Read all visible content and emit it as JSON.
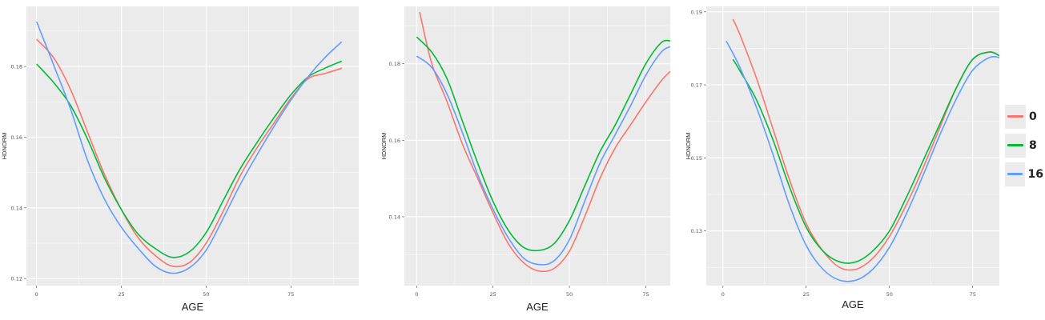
{
  "chart_data": [
    {
      "type": "line",
      "xlabel": "AGE",
      "ylabel": "HDNORM",
      "xlim": [
        -3,
        95
      ],
      "ylim": [
        0.118,
        0.197
      ],
      "xticks": [
        0,
        25,
        50,
        75
      ],
      "yticks": [
        0.12,
        0.14,
        0.16,
        0.18
      ],
      "grid": true,
      "series": [
        {
          "name": "0",
          "color": "#F8766D",
          "x": [
            0,
            5,
            10,
            15,
            20,
            25,
            30,
            35,
            40,
            45,
            50,
            55,
            60,
            65,
            70,
            75,
            80,
            85,
            90
          ],
          "y": [
            0.1877,
            0.1825,
            0.1735,
            0.1615,
            0.1495,
            0.1395,
            0.1315,
            0.1265,
            0.1235,
            0.1245,
            0.13,
            0.139,
            0.149,
            0.157,
            0.164,
            0.171,
            0.1765,
            0.178,
            0.1795
          ]
        },
        {
          "name": "8",
          "color": "#00BA38",
          "x": [
            0,
            5,
            10,
            15,
            20,
            25,
            30,
            35,
            40,
            45,
            50,
            55,
            60,
            65,
            70,
            75,
            80,
            85,
            90
          ],
          "y": [
            0.1807,
            0.1755,
            0.169,
            0.1595,
            0.1485,
            0.1395,
            0.1325,
            0.1285,
            0.126,
            0.1275,
            0.133,
            0.142,
            0.151,
            0.1585,
            0.1655,
            0.172,
            0.177,
            0.1795,
            0.1815
          ]
        },
        {
          "name": "16",
          "color": "#619CFF",
          "x": [
            0,
            5,
            10,
            15,
            20,
            25,
            30,
            35,
            40,
            45,
            50,
            55,
            60,
            65,
            70,
            75,
            80,
            85,
            90
          ],
          "y": [
            0.1927,
            0.1805,
            0.168,
            0.1535,
            0.1425,
            0.1345,
            0.1285,
            0.1235,
            0.1215,
            0.123,
            0.128,
            0.137,
            0.1465,
            0.155,
            0.163,
            0.1705,
            0.177,
            0.1825,
            0.187
          ]
        }
      ]
    },
    {
      "type": "line",
      "xlabel": "AGE",
      "ylabel": "HDNORM",
      "xlim": [
        -4,
        83
      ],
      "ylim": [
        0.122,
        0.195
      ],
      "xticks": [
        0,
        25,
        50,
        75
      ],
      "yticks": [
        0.14,
        0.16,
        0.18
      ],
      "grid": true,
      "series": [
        {
          "name": "0",
          "color": "#F8766D",
          "x": [
            1,
            5,
            10,
            15,
            20,
            25,
            30,
            35,
            40,
            45,
            50,
            55,
            60,
            65,
            70,
            75,
            80,
            83
          ],
          "y": [
            0.1935,
            0.18,
            0.17,
            0.159,
            0.15,
            0.141,
            0.133,
            0.128,
            0.1258,
            0.1265,
            0.131,
            0.14,
            0.15,
            0.158,
            0.164,
            0.17,
            0.1755,
            0.178
          ]
        },
        {
          "name": "8",
          "color": "#00BA38",
          "x": [
            0,
            5,
            10,
            15,
            20,
            25,
            30,
            35,
            40,
            45,
            50,
            55,
            60,
            65,
            70,
            75,
            80,
            83
          ],
          "y": [
            0.187,
            0.183,
            0.176,
            0.165,
            0.154,
            0.144,
            0.1365,
            0.132,
            0.1312,
            0.133,
            0.139,
            0.148,
            0.157,
            0.164,
            0.172,
            0.18,
            0.1855,
            0.186
          ]
        },
        {
          "name": "16",
          "color": "#619CFF",
          "x": [
            0,
            5,
            10,
            15,
            20,
            25,
            30,
            35,
            40,
            45,
            50,
            55,
            60,
            65,
            70,
            75,
            80,
            83
          ],
          "y": [
            0.182,
            0.179,
            0.172,
            0.162,
            0.151,
            0.142,
            0.1345,
            0.1292,
            0.1275,
            0.1285,
            0.134,
            0.144,
            0.154,
            0.1615,
            0.169,
            0.177,
            0.183,
            0.1845
          ]
        }
      ]
    },
    {
      "type": "line",
      "xlabel": "AGE",
      "ylabel": "HDNORM",
      "xlim": [
        -5,
        83
      ],
      "ylim": [
        0.115,
        0.1915
      ],
      "xticks": [
        0,
        25,
        50,
        75
      ],
      "yticks": [
        0.13,
        0.15,
        0.17,
        0.19
      ],
      "grid": true,
      "series": [
        {
          "name": "0",
          "color": "#F8766D",
          "x": [
            3,
            5,
            10,
            15,
            20,
            25,
            30,
            35,
            40,
            45,
            50,
            55,
            60,
            65,
            70,
            75,
            80,
            83
          ],
          "y": [
            0.188,
            0.184,
            0.172,
            0.158,
            0.144,
            0.132,
            0.1245,
            0.12,
            0.1195,
            0.1225,
            0.1285,
            0.137,
            0.147,
            0.158,
            0.169,
            0.177,
            0.179,
            0.178
          ]
        },
        {
          "name": "8",
          "color": "#00BA38",
          "x": [
            3,
            5,
            10,
            15,
            20,
            25,
            30,
            35,
            40,
            45,
            50,
            55,
            60,
            65,
            70,
            75,
            80,
            83
          ],
          "y": [
            0.177,
            0.174,
            0.166,
            0.155,
            0.142,
            0.131,
            0.1245,
            0.1215,
            0.1215,
            0.1245,
            0.13,
            0.139,
            0.149,
            0.159,
            0.169,
            0.177,
            0.179,
            0.178
          ]
        },
        {
          "name": "16",
          "color": "#619CFF",
          "x": [
            1,
            5,
            10,
            15,
            20,
            25,
            30,
            35,
            40,
            45,
            50,
            55,
            60,
            65,
            70,
            75,
            80,
            83
          ],
          "y": [
            0.182,
            0.175,
            0.164,
            0.151,
            0.137,
            0.126,
            0.1195,
            0.1165,
            0.1165,
            0.1195,
            0.1255,
            0.1345,
            0.145,
            0.156,
            0.166,
            0.174,
            0.1775,
            0.1775
          ]
        }
      ]
    }
  ],
  "legend": {
    "items": [
      {
        "label": "0",
        "color": "#F8766D"
      },
      {
        "label": "8",
        "color": "#00BA38"
      },
      {
        "label": "16",
        "color": "#619CFF"
      }
    ]
  }
}
